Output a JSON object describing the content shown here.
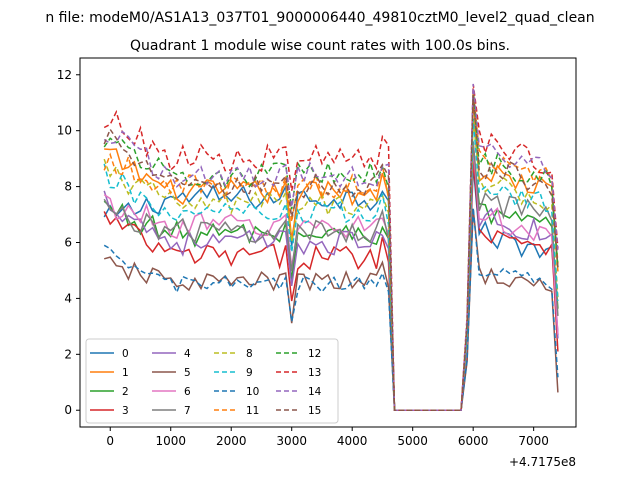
{
  "figure": {
    "suptitle": "n file: modeM0/AS1A13_037T01_9000006440_49810cztM0_level2_quad_clean",
    "offset_text": "+4.7175e8"
  },
  "chart_data": {
    "type": "line",
    "title": "Quadrant 1 module wise count rates with 100.0s bins.",
    "xlabel": "",
    "ylabel": "",
    "xlim": [
      -500,
      7700
    ],
    "ylim": [
      -0.6,
      12.6
    ],
    "xticks": [
      0,
      1000,
      2000,
      3000,
      4000,
      5000,
      6000,
      7000
    ],
    "yticks": [
      0,
      2,
      4,
      6,
      8,
      10,
      12
    ],
    "x_offset": 471750000,
    "grid": false,
    "legend": {
      "placement": "lower-left",
      "columns": 4
    },
    "x_segments": [
      {
        "start": -100,
        "end": 4600,
        "step": 100
      },
      {
        "start": 4700,
        "end": 5800,
        "step": 100
      },
      {
        "start": 5900,
        "end": 7400,
        "step": 100
      }
    ],
    "series": [
      {
        "name": "0",
        "color": "#1f77b4",
        "dash": "solid",
        "levels": [
          6.8,
          7.6,
          6.4
        ],
        "noise": 0.45
      },
      {
        "name": "1",
        "color": "#ff7f0e",
        "dash": "solid",
        "levels": [
          9.2,
          7.8,
          8.6
        ],
        "noise": 0.45
      },
      {
        "name": "2",
        "color": "#2ca02c",
        "dash": "solid",
        "levels": [
          7.3,
          6.3,
          7.2
        ],
        "noise": 0.45
      },
      {
        "name": "3",
        "color": "#d62728",
        "dash": "solid",
        "levels": [
          6.9,
          5.5,
          6.6
        ],
        "noise": 0.45
      },
      {
        "name": "4",
        "color": "#9467bd",
        "dash": "solid",
        "levels": [
          7.6,
          6.0,
          7.0
        ],
        "noise": 0.45
      },
      {
        "name": "5",
        "color": "#8c564b",
        "dash": "solid",
        "levels": [
          5.2,
          4.6,
          5.0
        ],
        "noise": 0.35
      },
      {
        "name": "6",
        "color": "#e377c2",
        "dash": "solid",
        "levels": [
          7.4,
          6.6,
          7.0
        ],
        "noise": 0.45
      },
      {
        "name": "7",
        "color": "#7f7f7f",
        "dash": "solid",
        "levels": [
          7.2,
          6.4,
          7.6
        ],
        "noise": 0.45
      },
      {
        "name": "8",
        "color": "#bcbd22",
        "dash": "dashed",
        "levels": [
          8.6,
          7.4,
          8.2
        ],
        "noise": 0.45
      },
      {
        "name": "9",
        "color": "#17becf",
        "dash": "dashed",
        "levels": [
          8.4,
          7.0,
          8.0
        ],
        "noise": 0.45
      },
      {
        "name": "10",
        "color": "#1f77b4",
        "dash": "dashed",
        "levels": [
          5.6,
          4.5,
          5.2
        ],
        "noise": 0.3
      },
      {
        "name": "11",
        "color": "#ff7f0e",
        "dash": "dashed",
        "levels": [
          9.0,
          8.0,
          9.2
        ],
        "noise": 0.45
      },
      {
        "name": "12",
        "color": "#2ca02c",
        "dash": "dashed",
        "levels": [
          9.8,
          8.4,
          9.0
        ],
        "noise": 0.45
      },
      {
        "name": "13",
        "color": "#d62728",
        "dash": "dashed",
        "levels": [
          10.5,
          9.0,
          9.6
        ],
        "noise": 0.5
      },
      {
        "name": "14",
        "color": "#9467bd",
        "dash": "dashed",
        "levels": [
          10.0,
          8.4,
          9.4
        ],
        "noise": 0.45
      },
      {
        "name": "15",
        "color": "#8c564b",
        "dash": "dashed",
        "levels": [
          9.8,
          8.0,
          8.8
        ],
        "noise": 0.45
      }
    ]
  }
}
